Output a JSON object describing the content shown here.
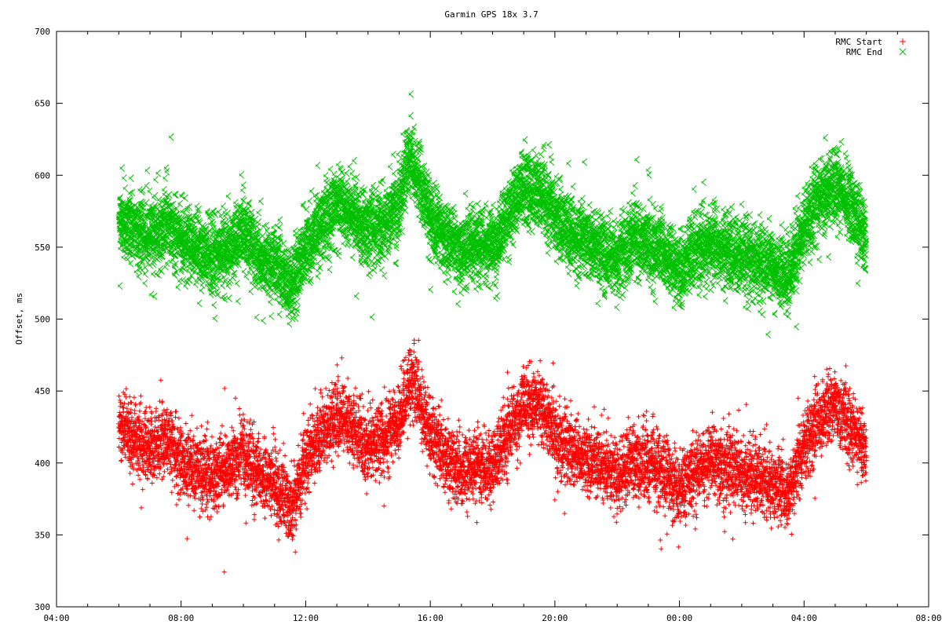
{
  "chart_data": {
    "type": "scatter",
    "title": "Garmin GPS 18x 3.7",
    "xlabel": "",
    "ylabel": "Offset, ms",
    "x_unit": "hours",
    "xlim": [
      4,
      32
    ],
    "ylim": [
      300,
      700
    ],
    "x_ticks": [
      {
        "value": 4,
        "label": "04:00"
      },
      {
        "value": 8,
        "label": "08:00"
      },
      {
        "value": 12,
        "label": "12:00"
      },
      {
        "value": 16,
        "label": "16:00"
      },
      {
        "value": 20,
        "label": "20:00"
      },
      {
        "value": 24,
        "label": "00:00"
      },
      {
        "value": 28,
        "label": "04:00"
      },
      {
        "value": 32,
        "label": "08:00"
      }
    ],
    "y_ticks": [
      300,
      350,
      400,
      450,
      500,
      550,
      600,
      650,
      700
    ],
    "grid": false,
    "legend_position": "top-right",
    "x_range_observed": [
      6.0,
      30.0
    ],
    "series": [
      {
        "name": "RMC Start",
        "marker": "+",
        "color": "#ff0000",
        "spread": 22,
        "points": [
          [
            6.0,
            425
          ],
          [
            6.5,
            418
          ],
          [
            7.0,
            410
          ],
          [
            7.5,
            418
          ],
          [
            8.0,
            400
          ],
          [
            8.5,
            398
          ],
          [
            9.0,
            392
          ],
          [
            9.5,
            395
          ],
          [
            10.0,
            408
          ],
          [
            10.5,
            390
          ],
          [
            11.0,
            388
          ],
          [
            11.5,
            368
          ],
          [
            12.0,
            400
          ],
          [
            12.5,
            420
          ],
          [
            13.0,
            433
          ],
          [
            13.5,
            425
          ],
          [
            14.0,
            410
          ],
          [
            14.5,
            418
          ],
          [
            15.0,
            430
          ],
          [
            15.3,
            455
          ],
          [
            15.5,
            455
          ],
          [
            16.0,
            420
          ],
          [
            16.5,
            405
          ],
          [
            17.0,
            395
          ],
          [
            17.5,
            400
          ],
          [
            18.0,
            398
          ],
          [
            18.5,
            420
          ],
          [
            19.0,
            440
          ],
          [
            19.5,
            440
          ],
          [
            20.0,
            420
          ],
          [
            20.5,
            408
          ],
          [
            21.0,
            405
          ],
          [
            21.5,
            398
          ],
          [
            22.0,
            390
          ],
          [
            22.5,
            402
          ],
          [
            23.0,
            400
          ],
          [
            23.5,
            395
          ],
          [
            24.0,
            382
          ],
          [
            24.5,
            395
          ],
          [
            25.0,
            402
          ],
          [
            25.5,
            395
          ],
          [
            26.0,
            392
          ],
          [
            26.5,
            390
          ],
          [
            27.0,
            385
          ],
          [
            27.5,
            380
          ],
          [
            28.0,
            410
          ],
          [
            28.5,
            432
          ],
          [
            29.0,
            440
          ],
          [
            29.5,
            425
          ],
          [
            30.0,
            405
          ]
        ]
      },
      {
        "name": "RMC End",
        "marker": "x",
        "color": "#00c000",
        "spread": 22,
        "points": [
          [
            6.0,
            568
          ],
          [
            6.5,
            562
          ],
          [
            7.0,
            558
          ],
          [
            7.5,
            565
          ],
          [
            8.0,
            555
          ],
          [
            8.5,
            548
          ],
          [
            9.0,
            542
          ],
          [
            9.5,
            548
          ],
          [
            10.0,
            560
          ],
          [
            10.5,
            540
          ],
          [
            11.0,
            540
          ],
          [
            11.5,
            520
          ],
          [
            12.0,
            548
          ],
          [
            12.5,
            565
          ],
          [
            13.0,
            580
          ],
          [
            13.5,
            572
          ],
          [
            14.0,
            560
          ],
          [
            14.5,
            565
          ],
          [
            15.0,
            580
          ],
          [
            15.3,
            610
          ],
          [
            15.5,
            605
          ],
          [
            16.0,
            570
          ],
          [
            16.5,
            555
          ],
          [
            17.0,
            548
          ],
          [
            17.5,
            552
          ],
          [
            18.0,
            548
          ],
          [
            18.5,
            570
          ],
          [
            19.0,
            592
          ],
          [
            19.5,
            590
          ],
          [
            20.0,
            570
          ],
          [
            20.5,
            560
          ],
          [
            21.0,
            555
          ],
          [
            21.5,
            545
          ],
          [
            22.0,
            540
          ],
          [
            22.5,
            555
          ],
          [
            23.0,
            552
          ],
          [
            23.5,
            545
          ],
          [
            24.0,
            532
          ],
          [
            24.5,
            545
          ],
          [
            25.0,
            552
          ],
          [
            25.5,
            545
          ],
          [
            26.0,
            542
          ],
          [
            26.5,
            540
          ],
          [
            27.0,
            535
          ],
          [
            27.5,
            530
          ],
          [
            28.0,
            562
          ],
          [
            28.5,
            585
          ],
          [
            29.0,
            592
          ],
          [
            29.5,
            578
          ],
          [
            30.0,
            555
          ]
        ]
      }
    ]
  }
}
